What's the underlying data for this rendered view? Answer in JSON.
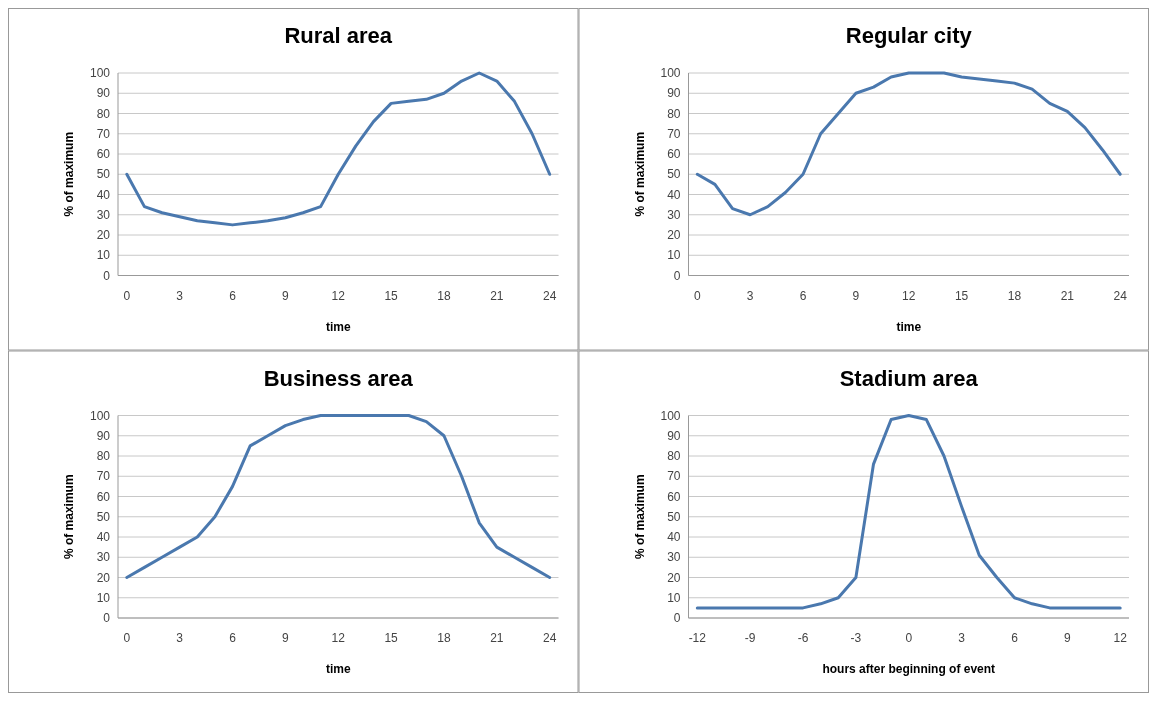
{
  "chart_data": [
    {
      "type": "line",
      "title": "Rural area",
      "xlabel": "time",
      "ylabel": "% of maximum",
      "x": [
        0,
        1,
        2,
        3,
        4,
        5,
        6,
        7,
        8,
        9,
        10,
        11,
        12,
        13,
        14,
        15,
        16,
        17,
        18,
        19,
        20,
        21,
        22,
        23,
        24
      ],
      "series": [
        {
          "color": "#4a78ae",
          "values": [
            50,
            34,
            31,
            29,
            27,
            26,
            25,
            26,
            27,
            28.5,
            31,
            34,
            50,
            64,
            76,
            85,
            86,
            87,
            90,
            96,
            100,
            96,
            86,
            70,
            50
          ]
        }
      ],
      "xlim": [
        -0.5,
        24.5
      ],
      "xticks": [
        0,
        3,
        6,
        9,
        12,
        15,
        18,
        21,
        24
      ],
      "ylim": [
        0,
        100
      ],
      "yticks": [
        0,
        10,
        20,
        30,
        40,
        50,
        60,
        70,
        80,
        90,
        100
      ],
      "grid": "y",
      "marker": "none",
      "line_style": "solid"
    },
    {
      "type": "line",
      "title": "Regular city",
      "xlabel": "time",
      "ylabel": "% of maximum",
      "x": [
        0,
        1,
        2,
        3,
        4,
        5,
        6,
        7,
        8,
        9,
        10,
        11,
        12,
        13,
        14,
        15,
        16,
        17,
        18,
        19,
        20,
        21,
        22,
        23,
        24
      ],
      "series": [
        {
          "color": "#4a78ae",
          "values": [
            50,
            45,
            33,
            30,
            34,
            41,
            50,
            70,
            80,
            90,
            93,
            98,
            100,
            100,
            100,
            98,
            97,
            96,
            95,
            92,
            85,
            81,
            73,
            62,
            50
          ]
        }
      ],
      "xlim": [
        -0.5,
        24.5
      ],
      "xticks": [
        0,
        3,
        6,
        9,
        12,
        15,
        18,
        21,
        24
      ],
      "ylim": [
        0,
        100
      ],
      "yticks": [
        0,
        10,
        20,
        30,
        40,
        50,
        60,
        70,
        80,
        90,
        100
      ],
      "grid": "y",
      "marker": "none",
      "line_style": "solid"
    },
    {
      "type": "line",
      "title": "Business area",
      "xlabel": "time",
      "ylabel": "% of maximum",
      "x": [
        0,
        1,
        2,
        3,
        4,
        5,
        6,
        7,
        8,
        9,
        10,
        11,
        12,
        13,
        14,
        15,
        16,
        17,
        18,
        19,
        20,
        21,
        22,
        23,
        24
      ],
      "series": [
        {
          "color": "#4a78ae",
          "values": [
            20,
            25,
            30,
            35,
            40,
            50,
            65,
            85,
            90,
            95,
            98,
            100,
            100,
            100,
            100,
            100,
            100,
            97,
            90,
            70,
            47,
            35,
            30,
            25,
            20
          ]
        }
      ],
      "xlim": [
        -0.5,
        24.5
      ],
      "xticks": [
        0,
        3,
        6,
        9,
        12,
        15,
        18,
        21,
        24
      ],
      "ylim": [
        0,
        100
      ],
      "yticks": [
        0,
        10,
        20,
        30,
        40,
        50,
        60,
        70,
        80,
        90,
        100
      ],
      "grid": "y",
      "marker": "none",
      "line_style": "solid"
    },
    {
      "type": "line",
      "title": "Stadium area",
      "xlabel": "hours after beginning of event",
      "ylabel": "% of maximum",
      "x": [
        -12,
        -11,
        -10,
        -9,
        -8,
        -7,
        -6,
        -5,
        -4,
        -3,
        -2,
        -1,
        0,
        1,
        2,
        3,
        4,
        5,
        6,
        7,
        8,
        9,
        10,
        11,
        12
      ],
      "series": [
        {
          "color": "#4a78ae",
          "values": [
            5,
            5,
            5,
            5,
            5,
            5,
            5,
            7,
            10,
            20,
            76,
            98,
            100,
            98,
            80,
            55,
            31,
            20,
            10,
            7,
            5,
            5,
            5,
            5,
            5
          ]
        }
      ],
      "xlim": [
        -12.5,
        12.5
      ],
      "xticks": [
        -12,
        -9,
        -6,
        -3,
        0,
        3,
        6,
        9,
        12
      ],
      "ylim": [
        0,
        100
      ],
      "yticks": [
        0,
        10,
        20,
        30,
        40,
        50,
        60,
        70,
        80,
        90,
        100
      ],
      "grid": "y",
      "marker": "none",
      "line_style": "solid"
    }
  ]
}
